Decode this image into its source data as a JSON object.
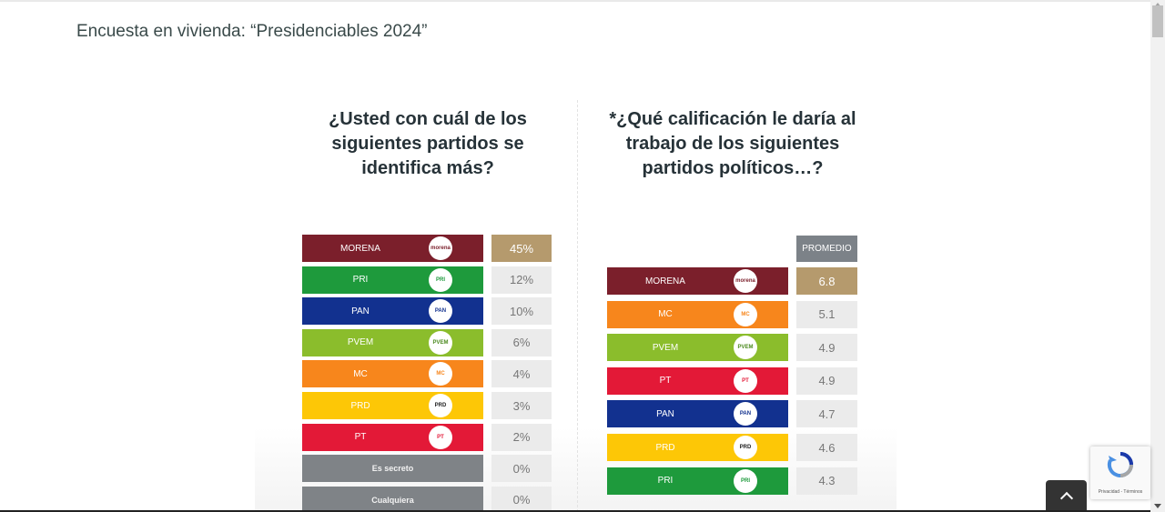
{
  "page_title": "Encuesta en vivienda: “Presidenciables 2024”",
  "accent_colors": {
    "highlight": "#b59a6d",
    "value_bg": "#ebebeb",
    "header_gray": "#7c8288"
  },
  "chart_data": [
    {
      "type": "bar",
      "title": "¿Usted con cuál de los siguientes partidos se identifica más?",
      "categories": [
        "MORENA",
        "PRI",
        "PAN",
        "PVEM",
        "MC",
        "PRD",
        "PT",
        "Es secreto",
        "Cualquiera"
      ],
      "values": [
        45,
        12,
        10,
        6,
        4,
        3,
        2,
        0,
        0
      ],
      "value_labels": [
        "45%",
        "12%",
        "10%",
        "6%",
        "4%",
        "3%",
        "2%",
        "0%",
        "0%"
      ],
      "colors": [
        "#7b1f2b",
        "#1e9a3c",
        "#12318f",
        "#8bbd2c",
        "#f7861c",
        "#fdc706",
        "#e31937",
        "#7f8387",
        "#7f8387"
      ],
      "logos": [
        "morena",
        "PRI",
        "PAN",
        "PVEM",
        "MC",
        "PRD",
        "PT",
        "",
        ""
      ],
      "highlight_index": 0
    },
    {
      "type": "bar",
      "title": "*¿Qué calificación le daría al trabajo de los siguientes partidos políticos…?",
      "column_header": "PROMEDIO",
      "categories": [
        "MORENA",
        "MC",
        "PVEM",
        "PT",
        "PAN",
        "PRD",
        "PRI"
      ],
      "values": [
        6.8,
        5.1,
        4.9,
        4.9,
        4.7,
        4.6,
        4.3
      ],
      "value_labels": [
        "6.8",
        "5.1",
        "4.9",
        "4.9",
        "4.7",
        "4.6",
        "4.3"
      ],
      "colors": [
        "#7b1f2b",
        "#f7861c",
        "#8bbd2c",
        "#e31937",
        "#12318f",
        "#fdc706",
        "#1e9a3c"
      ],
      "logos": [
        "morena",
        "MC",
        "PVEM",
        "PT",
        "PAN",
        "PRD",
        "PRI"
      ],
      "highlight_index": 0
    }
  ],
  "recaptcha": {
    "text": "Privacidad - Términos"
  }
}
